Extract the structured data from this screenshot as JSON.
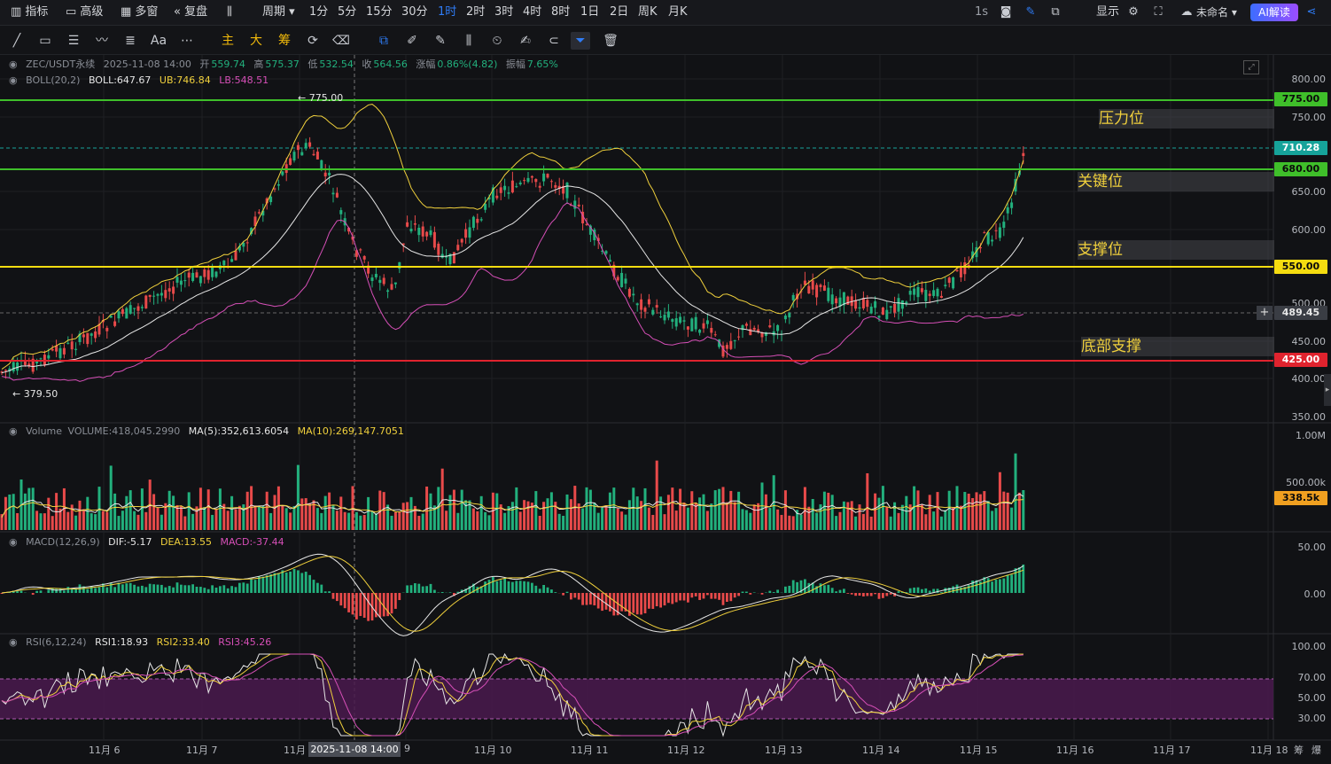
{
  "topbar": {
    "items": [
      "指标",
      "高级",
      "多窗",
      "复盘",
      "周期",
      "1分",
      "5分",
      "15分",
      "30分",
      "1时",
      "2时",
      "3时",
      "4时",
      "8时",
      "1日",
      "2日",
      "周K",
      "月K"
    ],
    "active": "1时",
    "right": {
      "interval": "1s",
      "display": "显示",
      "account": "未命名",
      "ai": "AI解读"
    }
  },
  "toolbar2": {
    "text_tool": "Aa",
    "chars": [
      "主",
      "大",
      "筹"
    ]
  },
  "price_panel": {
    "symbol_line": {
      "symbol": "ZEC/USDT永续",
      "datetime": "2025-11-08 14:00",
      "open_label": "开",
      "open": "559.74",
      "high_label": "高",
      "high": "575.37",
      "low_label": "低",
      "low": "532.54",
      "close_label": "收",
      "close": "564.56",
      "chg_label": "涨幅",
      "chg": "0.86%(4.82)",
      "amp_label": "振幅",
      "amp": "7.65%"
    },
    "boll": {
      "name": "BOLL(20,2)",
      "boll": "BOLL:647.67",
      "ub": "UB:746.84",
      "lb": "LB:548.51"
    },
    "axis": [
      "800.00",
      "750.00",
      "650.00",
      "600.00",
      "500.00",
      "450.00",
      "400.00",
      "350.00"
    ],
    "tags": {
      "p775": "775.00",
      "p710": "710.28",
      "p680": "680.00",
      "p550": "550.00",
      "p489": "489.45",
      "p425": "425.00"
    },
    "zones": {
      "pressure": "压力位",
      "key": "关键位",
      "support": "支撑位",
      "bottom": "底部支撑"
    },
    "high_marker": "775.00",
    "low_marker": "379.50"
  },
  "volume_panel": {
    "name": "Volume",
    "vol": "VOLUME:418,045.2990",
    "ma5": "MA(5):352,613.6054",
    "ma10": "MA(10):269,147.7051",
    "axis": [
      "1.00M",
      "500.00k"
    ],
    "tag": "338.5k"
  },
  "macd_panel": {
    "name": "MACD(12,26,9)",
    "dif": "DIF:-5.17",
    "dea": "DEA:13.55",
    "macd": "MACD:-37.44",
    "axis": [
      "50.00",
      "0.00"
    ]
  },
  "rsi_panel": {
    "name": "RSI(6,12,24)",
    "rsi1": "RSI1:18.93",
    "rsi2": "RSI2:33.40",
    "rsi3": "RSI3:45.26",
    "axis": [
      "100.00",
      "70.00",
      "50.00",
      "30.00"
    ]
  },
  "xaxis": {
    "labels": [
      "11月 6",
      "11月 7",
      "11月",
      "9",
      "11月 10",
      "11月 11",
      "11月 12",
      "11月 13",
      "11月 14",
      "11月 15",
      "11月 16",
      "11月 17",
      "11月 18"
    ],
    "cursor": "2025-11-08 14:00",
    "tail": [
      "筹",
      "爆"
    ]
  },
  "colors": {
    "up": "#22b07d",
    "down": "#e84a4a",
    "boll_mid": "#e6e6e6",
    "boll_ub": "#f0d03c",
    "boll_lb": "#d64fb7",
    "line_green": "#3fbf2a",
    "line_yellow": "#f5dc10",
    "line_red": "#e0232e",
    "accent": "#2f7cf6"
  }
}
